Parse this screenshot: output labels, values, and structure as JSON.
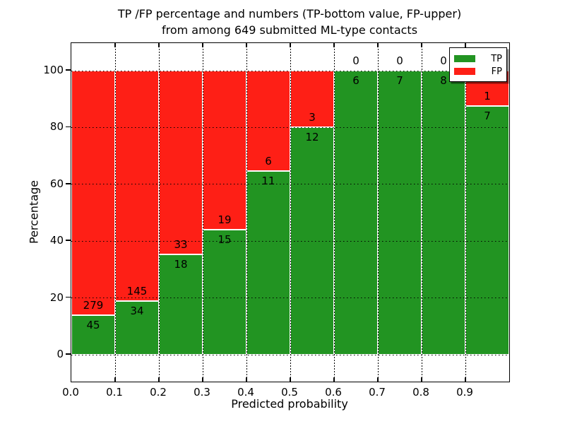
{
  "figure": {
    "title_line1": "TP /FP percentage and numbers (TP-bottom value, FP-upper)",
    "title_line2": "from among 649 submitted ML-type contacts",
    "xlabel": "Predicted probability",
    "ylabel": "Percentage"
  },
  "legend": {
    "position": "upper right",
    "items": [
      {
        "label": "TP",
        "color": "#229422"
      },
      {
        "label": "FP",
        "color": "#fe1f16"
      }
    ]
  },
  "chart_data": {
    "type": "bar",
    "stacked": true,
    "normalized_to_percent": true,
    "title": "TP /FP percentage and numbers (TP-bottom value, FP-upper) from among 649 submitted ML-type contacts",
    "xlabel": "Predicted probability",
    "ylabel": "Percentage",
    "total_contacts": 649,
    "bin_width": 0.1,
    "categories": [
      "0.0",
      "0.1",
      "0.2",
      "0.3",
      "0.4",
      "0.5",
      "0.6",
      "0.7",
      "0.8",
      "0.9"
    ],
    "y_ticks": [
      0,
      20,
      40,
      60,
      80,
      100
    ],
    "y_tick_labels": [
      "0",
      "20",
      "40",
      "60",
      "80",
      "100"
    ],
    "ylim": [
      -9.5,
      109.2
    ],
    "grid": true,
    "legend_position": "upper right",
    "series": [
      {
        "name": "TP",
        "color": "#229422",
        "values": [
          45,
          34,
          18,
          15,
          11,
          12,
          6,
          7,
          8,
          7
        ]
      },
      {
        "name": "FP",
        "color": "#fe1f16",
        "values": [
          279,
          145,
          33,
          19,
          6,
          3,
          0,
          0,
          0,
          1
        ]
      }
    ],
    "tp_percent": [
      13.9,
      19.0,
      35.3,
      44.1,
      64.7,
      80.0,
      100.0,
      100.0,
      100.0,
      87.5
    ]
  }
}
